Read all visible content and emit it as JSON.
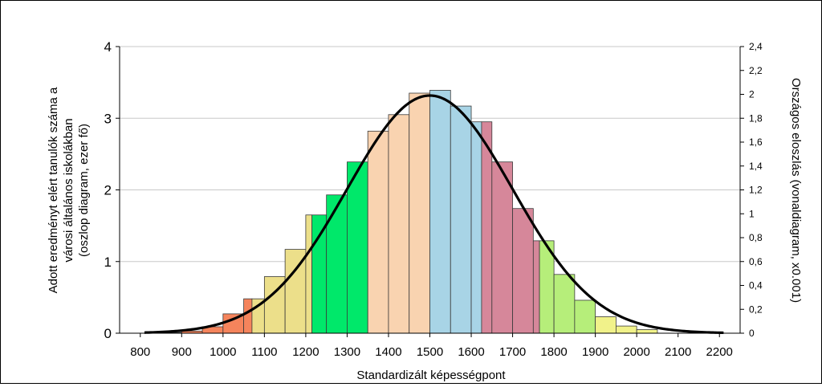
{
  "chart_data": {
    "type": "bar",
    "xlabel": "Standardizált képességpont",
    "ylabel_left": [
      "Adott eredményt elért tanulók száma a",
      "városi általános iskolákban",
      "(oszlop diagram, ezer fő)"
    ],
    "ylabel_right": "Országos eloszlás (vonaldiagram, x0.001)",
    "x_ticks": [
      "800",
      "900",
      "1000",
      "1100",
      "1200",
      "1300",
      "1400",
      "1500",
      "1600",
      "1700",
      "1800",
      "1900",
      "2000",
      "2100",
      "2200"
    ],
    "y_left_ticks": [
      "0",
      "1",
      "2",
      "3",
      "4"
    ],
    "y_right_ticks": [
      "0",
      "0,2",
      "0,4",
      "0,6",
      "0,8",
      "1",
      "1,2",
      "1,4",
      "1,6",
      "1,8",
      "2",
      "2,2",
      "2,4"
    ],
    "xlim": [
      750,
      2250
    ],
    "ylim_left": [
      0,
      4
    ],
    "ylim_right": [
      0,
      2.4
    ],
    "grid": true,
    "bars": [
      {
        "x0": 850,
        "x1": 900,
        "value": 0.01,
        "color": "#f5845c"
      },
      {
        "x0": 900,
        "x1": 950,
        "value": 0.03,
        "color": "#f5845c"
      },
      {
        "x0": 950,
        "x1": 1000,
        "value": 0.09,
        "color": "#f5845c"
      },
      {
        "x0": 1000,
        "x1": 1050,
        "value": 0.27,
        "color": "#f5845c"
      },
      {
        "x0": 1050,
        "x1": 1070,
        "value": 0.48,
        "color": "#f5845c"
      },
      {
        "x0": 1070,
        "x1": 1100,
        "value": 0.48,
        "color": "#ecdf8a"
      },
      {
        "x0": 1100,
        "x1": 1150,
        "value": 0.79,
        "color": "#ecdf8a"
      },
      {
        "x0": 1150,
        "x1": 1200,
        "value": 1.17,
        "color": "#ecdf8a"
      },
      {
        "x0": 1200,
        "x1": 1215,
        "value": 1.65,
        "color": "#ecdf8a"
      },
      {
        "x0": 1215,
        "x1": 1250,
        "value": 1.65,
        "color": "#00e86a"
      },
      {
        "x0": 1250,
        "x1": 1300,
        "value": 1.93,
        "color": "#00e86a"
      },
      {
        "x0": 1300,
        "x1": 1350,
        "value": 2.39,
        "color": "#00e86a"
      },
      {
        "x0": 1350,
        "x1": 1400,
        "value": 2.82,
        "color": "#f9d3b0"
      },
      {
        "x0": 1400,
        "x1": 1450,
        "value": 3.05,
        "color": "#f9d3b0"
      },
      {
        "x0": 1450,
        "x1": 1500,
        "value": 3.35,
        "color": "#f9d3b0"
      },
      {
        "x0": 1500,
        "x1": 1550,
        "value": 3.39,
        "color": "#a8d4e6"
      },
      {
        "x0": 1550,
        "x1": 1600,
        "value": 3.17,
        "color": "#a8d4e6"
      },
      {
        "x0": 1600,
        "x1": 1625,
        "value": 2.95,
        "color": "#a8d4e6"
      },
      {
        "x0": 1625,
        "x1": 1650,
        "value": 2.95,
        "color": "#d6879a"
      },
      {
        "x0": 1650,
        "x1": 1700,
        "value": 2.39,
        "color": "#d6879a"
      },
      {
        "x0": 1700,
        "x1": 1750,
        "value": 1.74,
        "color": "#d6879a"
      },
      {
        "x0": 1750,
        "x1": 1765,
        "value": 1.29,
        "color": "#d6879a"
      },
      {
        "x0": 1765,
        "x1": 1800,
        "value": 1.29,
        "color": "#b6ee7a"
      },
      {
        "x0": 1800,
        "x1": 1850,
        "value": 0.82,
        "color": "#b6ee7a"
      },
      {
        "x0": 1850,
        "x1": 1900,
        "value": 0.46,
        "color": "#b6ee7a"
      },
      {
        "x0": 1900,
        "x1": 1950,
        "value": 0.23,
        "color": "#f1f28a"
      },
      {
        "x0": 1950,
        "x1": 2000,
        "value": 0.1,
        "color": "#f1f28a"
      },
      {
        "x0": 2000,
        "x1": 2050,
        "value": 0.05,
        "color": "#f1f28a"
      }
    ],
    "curve": {
      "type": "normal",
      "mean": 1500,
      "sd": 200,
      "peak_right_axis": 1.99,
      "x_range": [
        810,
        2210
      ],
      "color": "#000000"
    }
  }
}
